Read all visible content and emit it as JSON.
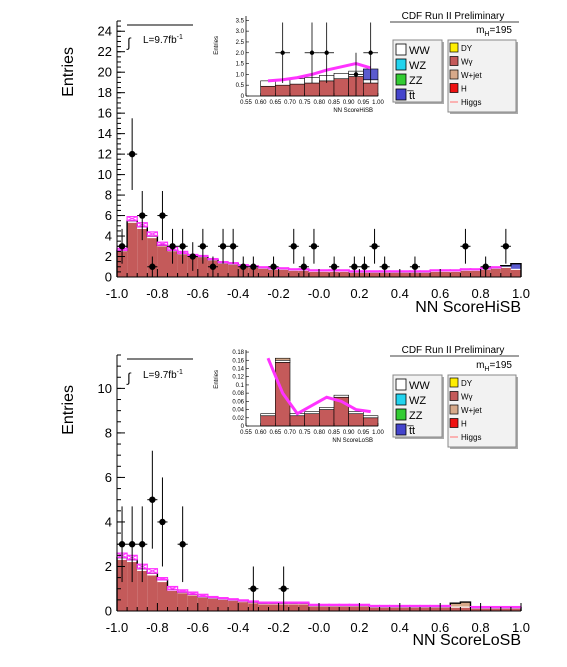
{
  "chart_data": [
    {
      "type": "bar",
      "subtype": "stacked-histogram",
      "banner": "CDF Run II Preliminary",
      "mass_label": "m",
      "mass_sub": "H",
      "mass_value": "=195",
      "lumi_label": "L=9.7fb",
      "lumi_exp": "-1",
      "xlabel": "NN ScoreHiSB",
      "ylabel": "Entries",
      "xlim": [
        -1.0,
        1.0
      ],
      "ylim": [
        0,
        25
      ],
      "x_ticks": [
        "-1.0",
        "-0.8",
        "-0.6",
        "-0.4",
        "-0.2",
        "-0.0",
        "0.2",
        "0.4",
        "0.6",
        "0.8",
        "1.0"
      ],
      "y_ticks": [
        "0",
        "2",
        "4",
        "6",
        "8",
        "10",
        "12",
        "14",
        "16",
        "18",
        "20",
        "22",
        "24"
      ],
      "bin_width": 0.05,
      "series": [
        {
          "name": "Wγ",
          "color": "#c45a5a",
          "values": [
            2.5,
            5.3,
            4.7,
            3.8,
            3.0,
            2.5,
            2.2,
            2.0,
            1.9,
            1.6,
            1.3,
            1.2,
            1.0,
            0.9,
            0.8,
            0.7,
            0.7,
            0.6,
            0.6,
            0.5,
            0.5,
            0.5,
            0.5,
            0.4,
            0.4,
            0.4,
            0.4,
            0.4,
            0.4,
            0.4,
            0.4,
            0.5,
            0.5,
            0.5,
            0.6,
            0.6,
            0.7,
            0.8,
            0.9,
            0.7
          ]
        },
        {
          "name": "WW",
          "color": "#ffffff",
          "values": [
            0.1,
            0.2,
            0.2,
            0.2,
            0.1,
            0.1,
            0.1,
            0.1,
            0.1,
            0.1,
            0.1,
            0.1,
            0.1,
            0.1,
            0.1,
            0.1,
            0.1,
            0.1,
            0.1,
            0.1,
            0.1,
            0.1,
            0.1,
            0.1,
            0.1,
            0.1,
            0.1,
            0.1,
            0.1,
            0.1,
            0.1,
            0.1,
            0.1,
            0.1,
            0.1,
            0.1,
            0.1,
            0.1,
            0.1,
            0.1
          ]
        },
        {
          "name": "t̅t",
          "color": "#5a5acf",
          "values": [
            0,
            0,
            0,
            0,
            0,
            0,
            0,
            0,
            0,
            0,
            0,
            0,
            0,
            0,
            0,
            0,
            0,
            0,
            0,
            0,
            0,
            0,
            0,
            0,
            0,
            0,
            0,
            0,
            0,
            0,
            0,
            0,
            0,
            0,
            0,
            0,
            0,
            0,
            0.1,
            0.5
          ]
        }
      ],
      "higgs_band": [
        2.8,
        5.9,
        5.3,
        4.4,
        3.4,
        2.9,
        2.5,
        2.2,
        2.1,
        1.8,
        1.5,
        1.4,
        1.2,
        1.1,
        1.0,
        0.9,
        0.9,
        0.8,
        0.8,
        0.7,
        0.7,
        0.7,
        0.7,
        0.6,
        0.6,
        0.6,
        0.6,
        0.6,
        0.6,
        0.6,
        0.6,
        0.7,
        0.7,
        0.7,
        0.8,
        0.8,
        0.9,
        1.0,
        1.1,
        1.0
      ],
      "data_points": [
        {
          "x": -0.975,
          "y": 3,
          "err": 1.7
        },
        {
          "x": -0.925,
          "y": 12,
          "err": 3.5
        },
        {
          "x": -0.875,
          "y": 6,
          "err": 2.4
        },
        {
          "x": -0.825,
          "y": 1,
          "err": 1.0
        },
        {
          "x": -0.775,
          "y": 6,
          "err": 2.4
        },
        {
          "x": -0.725,
          "y": 3,
          "err": 1.7
        },
        {
          "x": -0.675,
          "y": 3,
          "err": 1.7
        },
        {
          "x": -0.625,
          "y": 2,
          "err": 1.4
        },
        {
          "x": -0.575,
          "y": 3,
          "err": 1.7
        },
        {
          "x": -0.525,
          "y": 1,
          "err": 1.0
        },
        {
          "x": -0.475,
          "y": 3,
          "err": 1.7
        },
        {
          "x": -0.425,
          "y": 3,
          "err": 1.7
        },
        {
          "x": -0.375,
          "y": 1,
          "err": 1.0
        },
        {
          "x": -0.325,
          "y": 1,
          "err": 1.0
        },
        {
          "x": -0.225,
          "y": 1,
          "err": 1.0
        },
        {
          "x": -0.125,
          "y": 3,
          "err": 1.7
        },
        {
          "x": -0.075,
          "y": 1,
          "err": 1.0
        },
        {
          "x": -0.025,
          "y": 3,
          "err": 1.7
        },
        {
          "x": 0.075,
          "y": 1,
          "err": 1.0
        },
        {
          "x": 0.175,
          "y": 1,
          "err": 1.0
        },
        {
          "x": 0.225,
          "y": 1,
          "err": 1.0
        },
        {
          "x": 0.275,
          "y": 3,
          "err": 1.7
        },
        {
          "x": 0.325,
          "y": 1,
          "err": 1.0
        },
        {
          "x": 0.475,
          "y": 1,
          "err": 1.0
        },
        {
          "x": 0.725,
          "y": 3,
          "err": 1.7
        },
        {
          "x": 0.825,
          "y": 1,
          "err": 1.0
        },
        {
          "x": 0.925,
          "y": 3,
          "err": 1.7
        }
      ],
      "inset": {
        "ylabel": "Entries",
        "xlabel": "NN ScoreHiSB",
        "xlim": [
          0.55,
          1.0
        ],
        "ylim": [
          0,
          3.7
        ],
        "x_ticks": [
          "0.55",
          "0.60",
          "0.65",
          "0.70",
          "0.75",
          "0.80",
          "0.85",
          "0.90",
          "0.95",
          "1.00"
        ],
        "y_ticks": [
          "0",
          "0.5",
          "1.0",
          "1.5",
          "2.0",
          "2.5",
          "3.0",
          "3.5"
        ],
        "bins": [
          0.6,
          0.65,
          0.7,
          0.75,
          0.8,
          0.85,
          0.9,
          0.95
        ],
        "wgamma": [
          0.45,
          0.5,
          0.55,
          0.6,
          0.7,
          0.8,
          0.9,
          0.6
        ],
        "ww": [
          0.25,
          0.25,
          0.25,
          0.25,
          0.25,
          0.25,
          0.25,
          0.15
        ],
        "ttbar": [
          0,
          0,
          0,
          0,
          0,
          0,
          0,
          0.5
        ],
        "higgs_line": [
          0.7,
          0.75,
          0.85,
          1.0,
          1.2,
          1.35,
          1.5,
          1.3
        ],
        "data_points": [
          {
            "x": 0.675,
            "y": 2,
            "err": 1.4
          },
          {
            "x": 0.725,
            "y": 0,
            "err": 0
          },
          {
            "x": 0.775,
            "y": 2,
            "err": 1.4
          },
          {
            "x": 0.825,
            "y": 2,
            "err": 1.4
          },
          {
            "x": 0.875,
            "y": 0,
            "err": 0
          },
          {
            "x": 0.925,
            "y": 1,
            "err": 1.0
          },
          {
            "x": 0.975,
            "y": 2,
            "err": 1.4
          }
        ]
      }
    },
    {
      "type": "bar",
      "subtype": "stacked-histogram",
      "banner": "CDF Run II Preliminary",
      "mass_label": "m",
      "mass_sub": "H",
      "mass_value": "=195",
      "lumi_label": "L=9.7fb",
      "lumi_exp": "-1",
      "xlabel": "NN ScoreLoSB",
      "ylabel": "Entries",
      "xlim": [
        -1.0,
        1.0
      ],
      "ylim": [
        0,
        11.5
      ],
      "x_ticks": [
        "-1.0",
        "-0.8",
        "-0.6",
        "-0.4",
        "-0.2",
        "-0.0",
        "0.2",
        "0.4",
        "0.6",
        "0.8",
        "1.0"
      ],
      "y_ticks": [
        "0",
        "2",
        "4",
        "6",
        "8",
        "10"
      ],
      "bin_width": 0.05,
      "series": [
        {
          "name": "Wγ",
          "color": "#c45a5a",
          "values": [
            2.3,
            2.2,
            1.8,
            1.6,
            1.3,
            0.9,
            0.8,
            0.7,
            0.6,
            0.55,
            0.5,
            0.45,
            0.4,
            0.35,
            0.3,
            0.3,
            0.3,
            0.3,
            0.3,
            0.2,
            0.2,
            0.2,
            0.2,
            0.2,
            0.2,
            0.15,
            0.15,
            0.15,
            0.15,
            0.15,
            0.15,
            0.15,
            0.15,
            0.15,
            0.15,
            0.1,
            0.1,
            0.1,
            0.1,
            0.1
          ]
        },
        {
          "name": "WW",
          "color": "#ffffff",
          "values": [
            0.1,
            0.1,
            0.1,
            0.1,
            0.1,
            0.05,
            0.05,
            0.05,
            0.05,
            0.05,
            0.05,
            0.05,
            0.05,
            0.05,
            0.05,
            0.05,
            0.05,
            0.05,
            0.05,
            0.05,
            0.05,
            0.05,
            0.05,
            0.05,
            0.05,
            0.05,
            0.05,
            0.05,
            0.05,
            0.05,
            0.05,
            0.05,
            0.05,
            0.05,
            0.05,
            0.05,
            0.05,
            0.05,
            0.05,
            0.05
          ]
        },
        {
          "name": "W+jet",
          "color": "#d7a98a",
          "values": [
            0,
            0,
            0,
            0,
            0,
            0,
            0,
            0,
            0,
            0,
            0,
            0,
            0,
            0,
            0,
            0,
            0,
            0,
            0,
            0,
            0,
            0,
            0,
            0,
            0,
            0,
            0,
            0,
            0,
            0,
            0,
            0,
            0,
            0.15,
            0.2,
            0,
            0,
            0,
            0,
            0
          ]
        }
      ],
      "higgs_band": [
        2.6,
        2.5,
        2.1,
        1.9,
        1.5,
        1.1,
        0.95,
        0.85,
        0.75,
        0.65,
        0.6,
        0.55,
        0.5,
        0.45,
        0.4,
        0.4,
        0.4,
        0.4,
        0.4,
        0.3,
        0.3,
        0.3,
        0.3,
        0.3,
        0.3,
        0.25,
        0.25,
        0.25,
        0.25,
        0.25,
        0.25,
        0.25,
        0.25,
        0.25,
        0.25,
        0.2,
        0.2,
        0.2,
        0.2,
        0.2
      ],
      "data_points": [
        {
          "x": -0.975,
          "y": 3,
          "err": 1.7
        },
        {
          "x": -0.925,
          "y": 3,
          "err": 1.7
        },
        {
          "x": -0.875,
          "y": 3,
          "err": 1.7
        },
        {
          "x": -0.825,
          "y": 5,
          "err": 2.2
        },
        {
          "x": -0.775,
          "y": 4,
          "err": 2.0
        },
        {
          "x": -0.675,
          "y": 3,
          "err": 1.7
        },
        {
          "x": -0.325,
          "y": 1,
          "err": 1.0
        },
        {
          "x": -0.175,
          "y": 1,
          "err": 1.0
        }
      ],
      "inset": {
        "ylabel": "Entries",
        "xlabel": "NN ScoreLoSB",
        "xlim": [
          0.55,
          1.0
        ],
        "ylim": [
          0,
          0.185
        ],
        "x_ticks": [
          "0.55",
          "0.60",
          "0.65",
          "0.70",
          "0.75",
          "0.80",
          "0.85",
          "0.90",
          "0.95",
          "1.00"
        ],
        "y_ticks": [
          "0",
          "0.02",
          "0.04",
          "0.06",
          "0.08",
          "0.1",
          "0.12",
          "0.14",
          "0.16",
          "0.18"
        ],
        "bins": [
          0.6,
          0.65,
          0.7,
          0.75,
          0.8,
          0.85,
          0.9,
          0.95
        ],
        "wgamma": [
          0.025,
          0.155,
          0.025,
          0.03,
          0.04,
          0.07,
          0.03,
          0.02
        ],
        "ww": [
          0.005,
          0.005,
          0.005,
          0.005,
          0.005,
          0.005,
          0.005,
          0.005
        ],
        "wjet": [
          0,
          0.005,
          0,
          0,
          0,
          0,
          0,
          0
        ],
        "higgs_line": [
          0.165,
          0.08,
          0.03,
          0.05,
          0.07,
          0.06,
          0.04,
          0.035
        ],
        "data_points": []
      }
    }
  ],
  "legend": {
    "left": [
      {
        "label": "WW",
        "color": "#ffffff"
      },
      {
        "label": "WZ",
        "color": "#22d3ee"
      },
      {
        "label": "ZZ",
        "color": "#33cc33"
      },
      {
        "label": "t̅t",
        "color": "#4444cc"
      }
    ],
    "right": [
      {
        "label": "DY",
        "color": "#ffee00"
      },
      {
        "label": "Wγ",
        "color": "#c45a5a"
      },
      {
        "label": "W+jet",
        "color": "#d7a98a"
      },
      {
        "label": "H",
        "color": "#ee1111"
      },
      {
        "label": "Higgs",
        "color": "#ff8888",
        "style": "line"
      }
    ]
  }
}
